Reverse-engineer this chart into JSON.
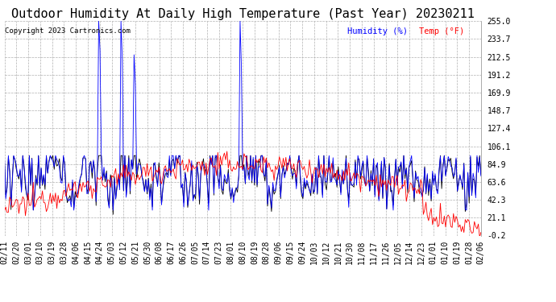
{
  "title": "Outdoor Humidity At Daily High Temperature (Past Year) 20230211",
  "copyright": "Copyright 2023 Cartronics.com",
  "legend_humidity": "Humidity (%)",
  "legend_temp": "Temp (°F)",
  "y_ticks": [
    -0.2,
    21.1,
    42.3,
    63.6,
    84.9,
    106.1,
    127.4,
    148.7,
    169.9,
    191.2,
    212.5,
    233.7,
    255.0
  ],
  "ylim": [
    -0.2,
    255.0
  ],
  "x_labels": [
    "02/11",
    "02/20",
    "03/01",
    "03/10",
    "03/19",
    "03/28",
    "04/06",
    "04/15",
    "04/24",
    "05/03",
    "05/12",
    "05/21",
    "05/30",
    "06/08",
    "06/17",
    "06/26",
    "07/05",
    "07/14",
    "07/23",
    "08/01",
    "08/10",
    "08/19",
    "08/28",
    "09/06",
    "09/15",
    "09/24",
    "10/03",
    "10/12",
    "10/21",
    "10/30",
    "11/08",
    "11/17",
    "11/26",
    "12/05",
    "12/14",
    "12/23",
    "01/01",
    "01/10",
    "01/19",
    "01/28",
    "02/06"
  ],
  "bg_color": "#ffffff",
  "grid_color": "#b0b0b0",
  "humidity_color": "#0000ff",
  "temp_color": "#ff0000",
  "black_color": "#000000",
  "title_fontsize": 11,
  "copyright_fontsize": 6.5,
  "tick_fontsize": 7,
  "legend_fontsize": 7.5
}
